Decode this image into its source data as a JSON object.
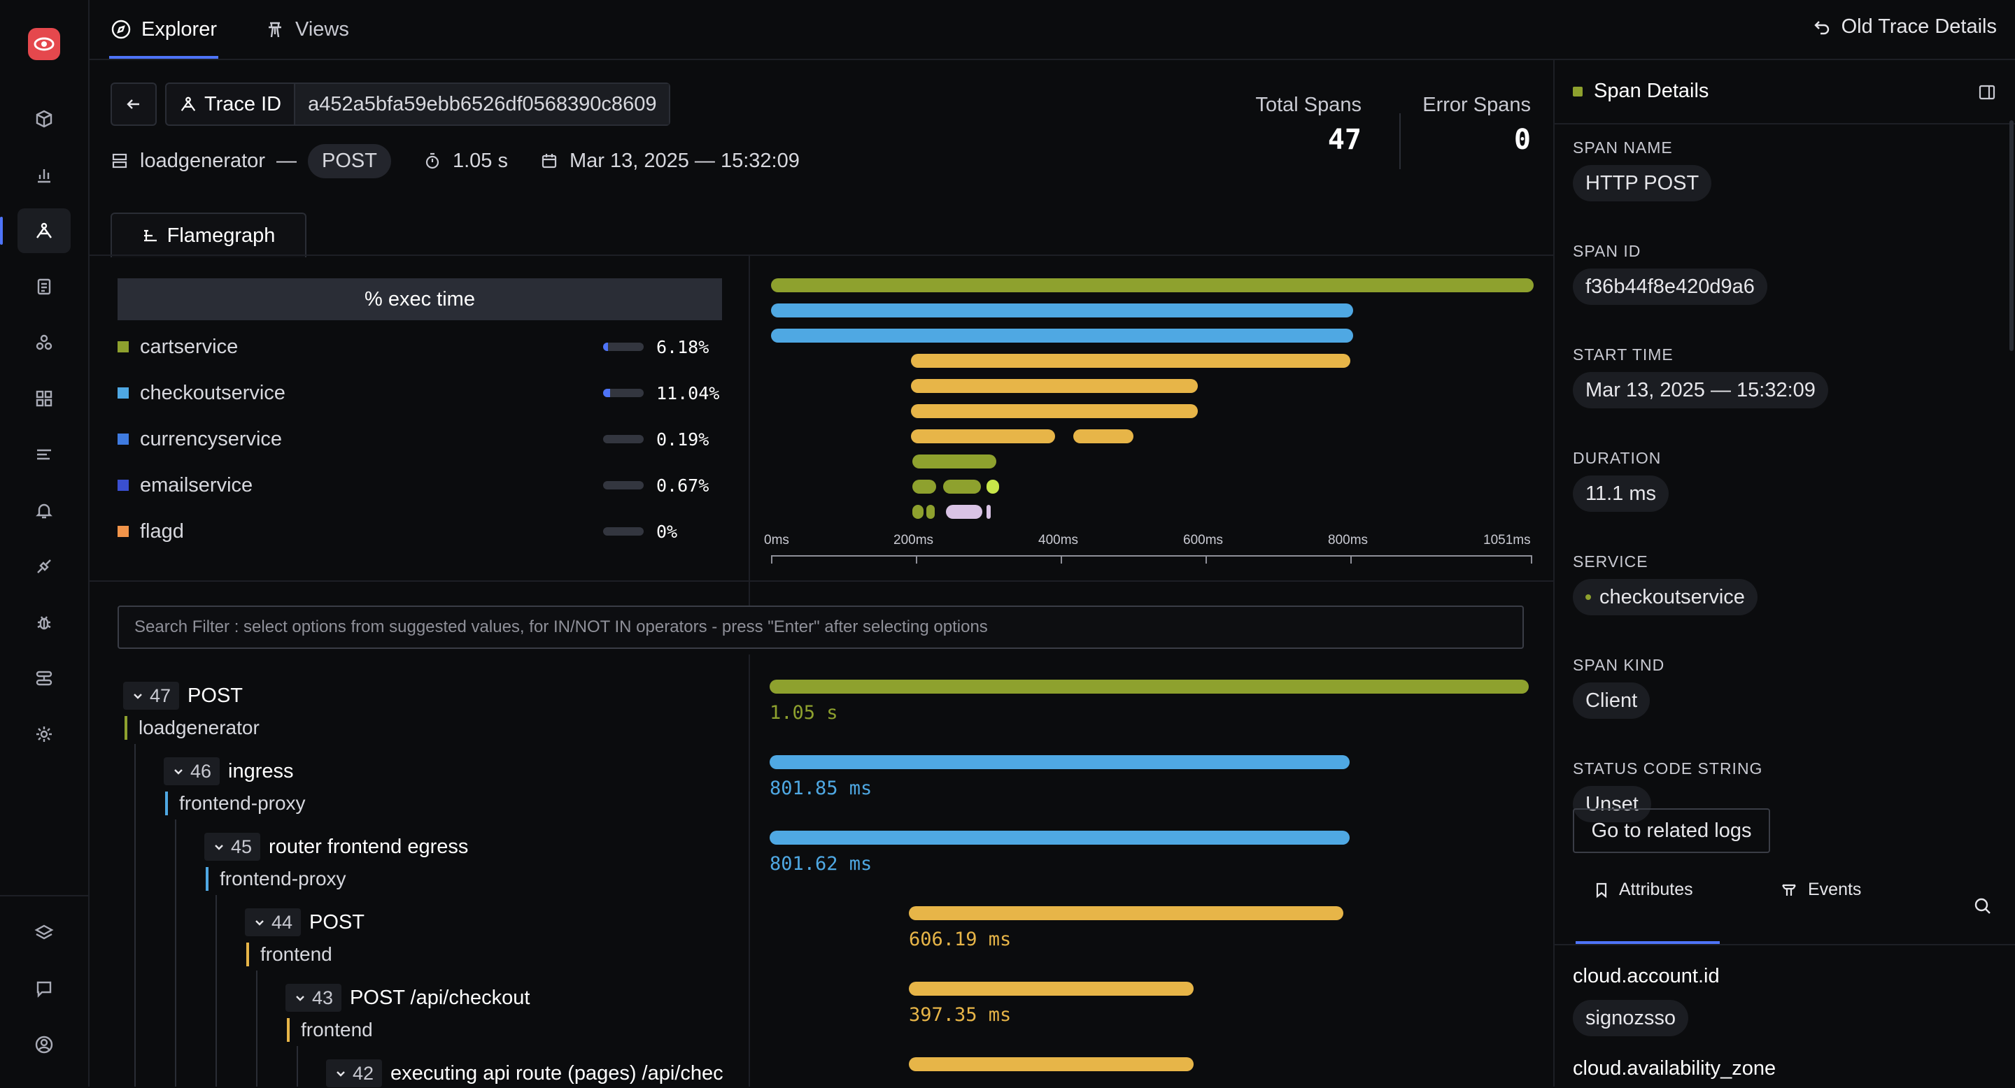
{
  "topbar": {
    "tabs": [
      {
        "label": "Explorer"
      },
      {
        "label": "Views"
      }
    ],
    "old_trace_label": "Old Trace Details"
  },
  "trace": {
    "trace_id_label": "Trace ID",
    "trace_id": "a452a5bfa59ebb6526df0568390c8609",
    "service": "loadgenerator",
    "dash": "—",
    "method": "POST",
    "duration": "1.05 s",
    "timestamp": "Mar 13, 2025 — 15:32:09"
  },
  "stats": {
    "total_label": "Total Spans",
    "total_value": "47",
    "error_label": "Error Spans",
    "error_value": "0"
  },
  "flamegraph": {
    "tab_label": "Flamegraph",
    "exec_header": "% exec time",
    "services": [
      {
        "name": "cartservice",
        "pct": "6.18%",
        "fill": 0.12,
        "color": "#8ea12e"
      },
      {
        "name": "checkoutservice",
        "pct": "11.04%",
        "fill": 0.18,
        "color": "#4fa8e3"
      },
      {
        "name": "currencyservice",
        "pct": "0.19%",
        "fill": 0.0,
        "color": "#3f7be0"
      },
      {
        "name": "emailservice",
        "pct": "0.67%",
        "fill": 0.0,
        "color": "#3a4fd0"
      },
      {
        "name": "flagd",
        "pct": "0%",
        "fill": 0.0,
        "color": "#f1944a"
      }
    ],
    "axis_ticks": [
      "0ms",
      "200ms",
      "400ms",
      "600ms",
      "800ms",
      "1051ms"
    ]
  },
  "search": {
    "placeholder": "Search Filter : select options from suggested values, for IN/NOT IN operators - press \"Enter\" after selecting options"
  },
  "tree": {
    "nodes": [
      {
        "count": "47",
        "name": "POST",
        "service": "loadgenerator",
        "duration": "1.05 s",
        "color": "#8ea12e"
      },
      {
        "count": "46",
        "name": "ingress",
        "service": "frontend-proxy",
        "duration": "801.85 ms",
        "color": "#4fa8e3"
      },
      {
        "count": "45",
        "name": "router frontend egress",
        "service": "frontend-proxy",
        "duration": "801.62 ms",
        "color": "#4fa8e3"
      },
      {
        "count": "44",
        "name": "POST",
        "service": "frontend",
        "duration": "606.19 ms",
        "color": "#e7b548"
      },
      {
        "count": "43",
        "name": "POST /api/checkout",
        "service": "frontend",
        "duration": "397.35 ms",
        "color": "#e7b548"
      },
      {
        "count": "42",
        "name": "executing api route (pages) /api/chec",
        "service": "",
        "duration": "",
        "color": "#e7b548"
      }
    ]
  },
  "span_details": {
    "title": "Span Details",
    "fields": [
      {
        "label": "SPAN NAME",
        "value": "HTTP POST"
      },
      {
        "label": "SPAN ID",
        "value": "f36b44f8e420d9a6"
      },
      {
        "label": "START TIME",
        "value": "Mar 13, 2025 — 15:32:09"
      },
      {
        "label": "DURATION",
        "value": "11.1 ms"
      },
      {
        "label": "SERVICE",
        "value": "checkoutservice"
      },
      {
        "label": "SPAN KIND",
        "value": "Client"
      },
      {
        "label": "STATUS CODE STRING",
        "value": "Unset"
      }
    ],
    "logs_button": "Go to related logs",
    "tabs": [
      {
        "label": "Attributes"
      },
      {
        "label": "Events"
      }
    ],
    "attributes": [
      {
        "key": "cloud.account.id",
        "value": "signozsso"
      },
      {
        "key": "cloud.availability_zone",
        "value": ""
      }
    ],
    "service_dot_color": "#8ea12e"
  }
}
